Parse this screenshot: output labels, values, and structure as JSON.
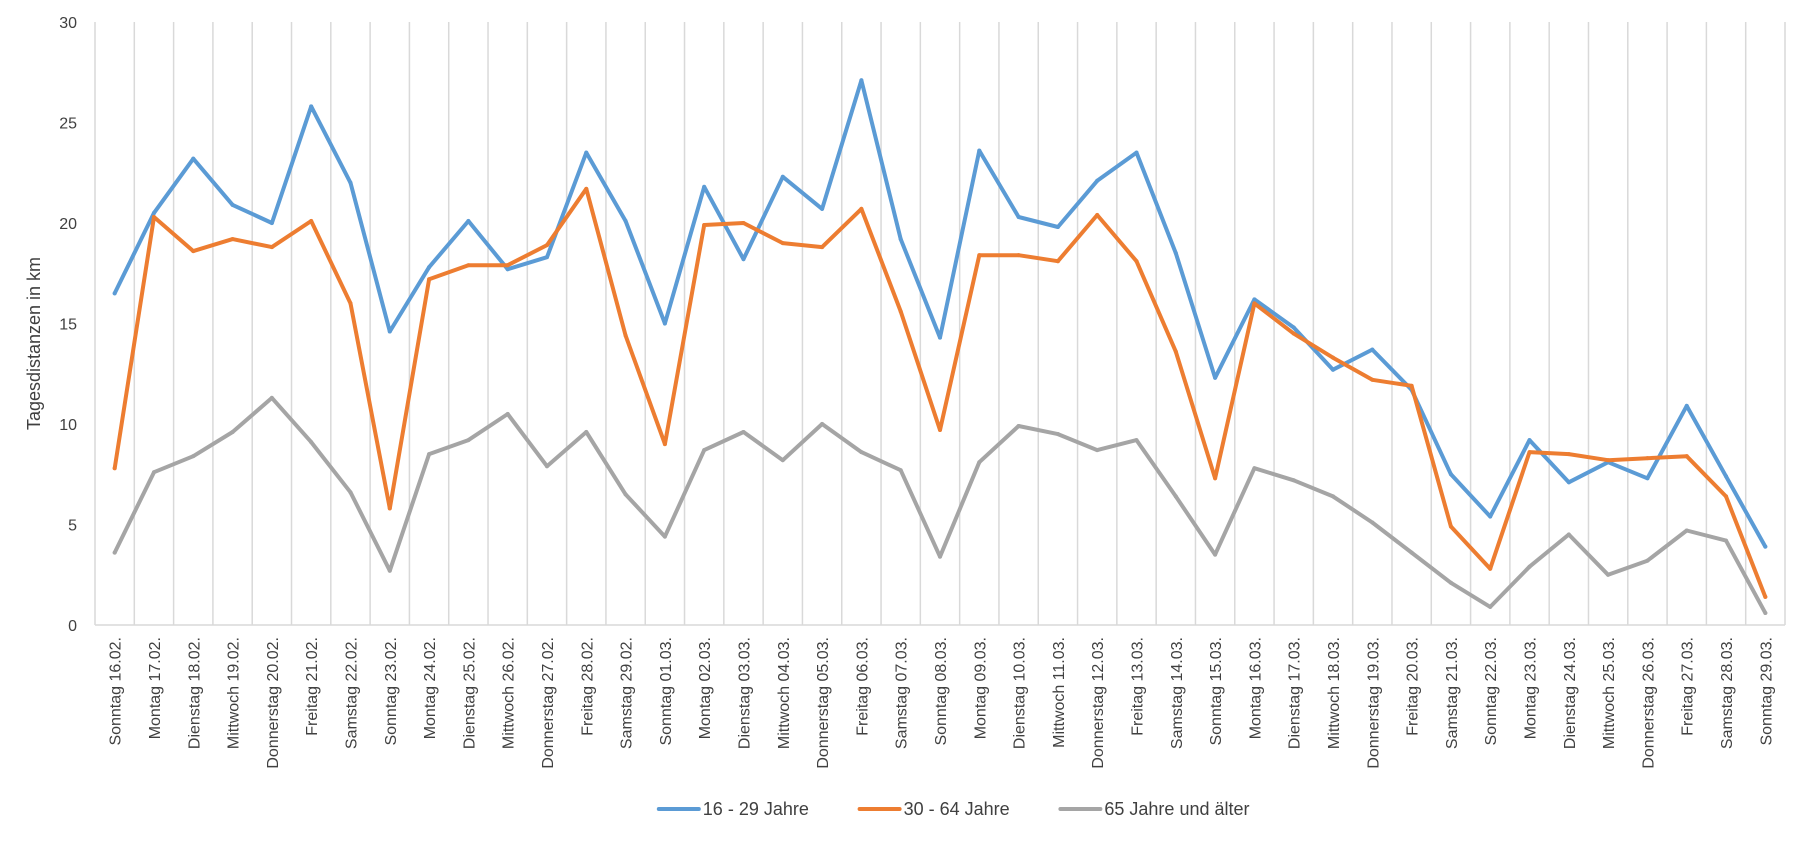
{
  "chart_data": {
    "type": "line",
    "title": "",
    "xlabel": "",
    "ylabel": "Tagesdistanzen in km",
    "ylim": [
      0,
      30
    ],
    "yticks": [
      0,
      5,
      10,
      15,
      20,
      25,
      30
    ],
    "grid": "vertical",
    "legend_position": "bottom",
    "categories": [
      "Sonntag 16.02.",
      "Montag 17.02.",
      "Dienstag 18.02.",
      "Mittwoch 19.02.",
      "Donnerstag 20.02.",
      "Freitag 21.02.",
      "Samstag 22.02.",
      "Sonntag 23.02.",
      "Montag 24.02.",
      "Dienstag 25.02.",
      "Mittwoch 26.02.",
      "Donnerstag 27.02.",
      "Freitag 28.02.",
      "Samstag 29.02.",
      "Sonntag 01.03.",
      "Montag 02.03.",
      "Dienstag 03.03.",
      "Mittwoch 04.03.",
      "Donnerstag 05.03.",
      "Freitag 06.03.",
      "Samstag 07.03.",
      "Sonntag 08.03.",
      "Montag 09.03.",
      "Dienstag 10.03.",
      "Mittwoch 11.03.",
      "Donnerstag 12.03.",
      "Freitag 13.03.",
      "Samstag 14.03.",
      "Sonntag 15.03.",
      "Montag 16.03.",
      "Dienstag 17.03.",
      "Mittwoch 18.03.",
      "Donnerstag 19.03.",
      "Freitag 20.03.",
      "Samstag 21.03.",
      "Sonntag 22.03.",
      "Montag 23.03.",
      "Dienstag 24.03.",
      "Mittwoch 25.03.",
      "Donnerstag 26.03.",
      "Freitag 27.03.",
      "Samstag 28.03.",
      "Sonntag 29.03."
    ],
    "series": [
      {
        "name": "16 - 29 Jahre",
        "color": "#5B9BD5",
        "values": [
          16.5,
          20.5,
          23.2,
          20.9,
          20.0,
          25.8,
          22.0,
          14.6,
          17.8,
          20.1,
          17.7,
          18.3,
          23.5,
          20.1,
          15.0,
          21.8,
          18.2,
          22.3,
          20.7,
          27.1,
          19.2,
          14.3,
          23.6,
          20.3,
          19.8,
          22.1,
          23.5,
          18.5,
          12.3,
          16.2,
          14.8,
          12.7,
          13.7,
          11.7,
          7.5,
          5.4,
          9.2,
          7.1,
          8.1,
          7.3,
          10.9,
          7.4,
          3.9
        ]
      },
      {
        "name": "30 - 64 Jahre",
        "color": "#ED7D31",
        "values": [
          7.8,
          20.3,
          18.6,
          19.2,
          18.8,
          20.1,
          16.0,
          5.8,
          17.2,
          17.9,
          17.9,
          18.9,
          21.7,
          14.4,
          9.0,
          19.9,
          20.0,
          19.0,
          18.8,
          20.7,
          15.6,
          9.7,
          18.4,
          18.4,
          18.1,
          20.4,
          18.1,
          13.6,
          7.3,
          16.0,
          14.5,
          13.3,
          12.2,
          11.9,
          4.9,
          2.8,
          8.6,
          8.5,
          8.2,
          8.3,
          8.4,
          6.4,
          1.4
        ]
      },
      {
        "name": "65 Jahre und älter",
        "color": "#A5A5A5",
        "values": [
          3.6,
          7.6,
          8.4,
          9.6,
          11.3,
          9.1,
          6.6,
          2.7,
          8.5,
          9.2,
          10.5,
          7.9,
          9.6,
          6.5,
          4.4,
          8.7,
          9.6,
          8.2,
          10.0,
          8.6,
          7.7,
          3.4,
          8.1,
          9.9,
          9.5,
          8.7,
          9.2,
          6.4,
          3.5,
          7.8,
          7.2,
          6.4,
          5.1,
          3.6,
          2.1,
          0.9,
          2.9,
          4.5,
          2.5,
          3.2,
          4.7,
          4.2,
          0.6
        ]
      }
    ]
  }
}
